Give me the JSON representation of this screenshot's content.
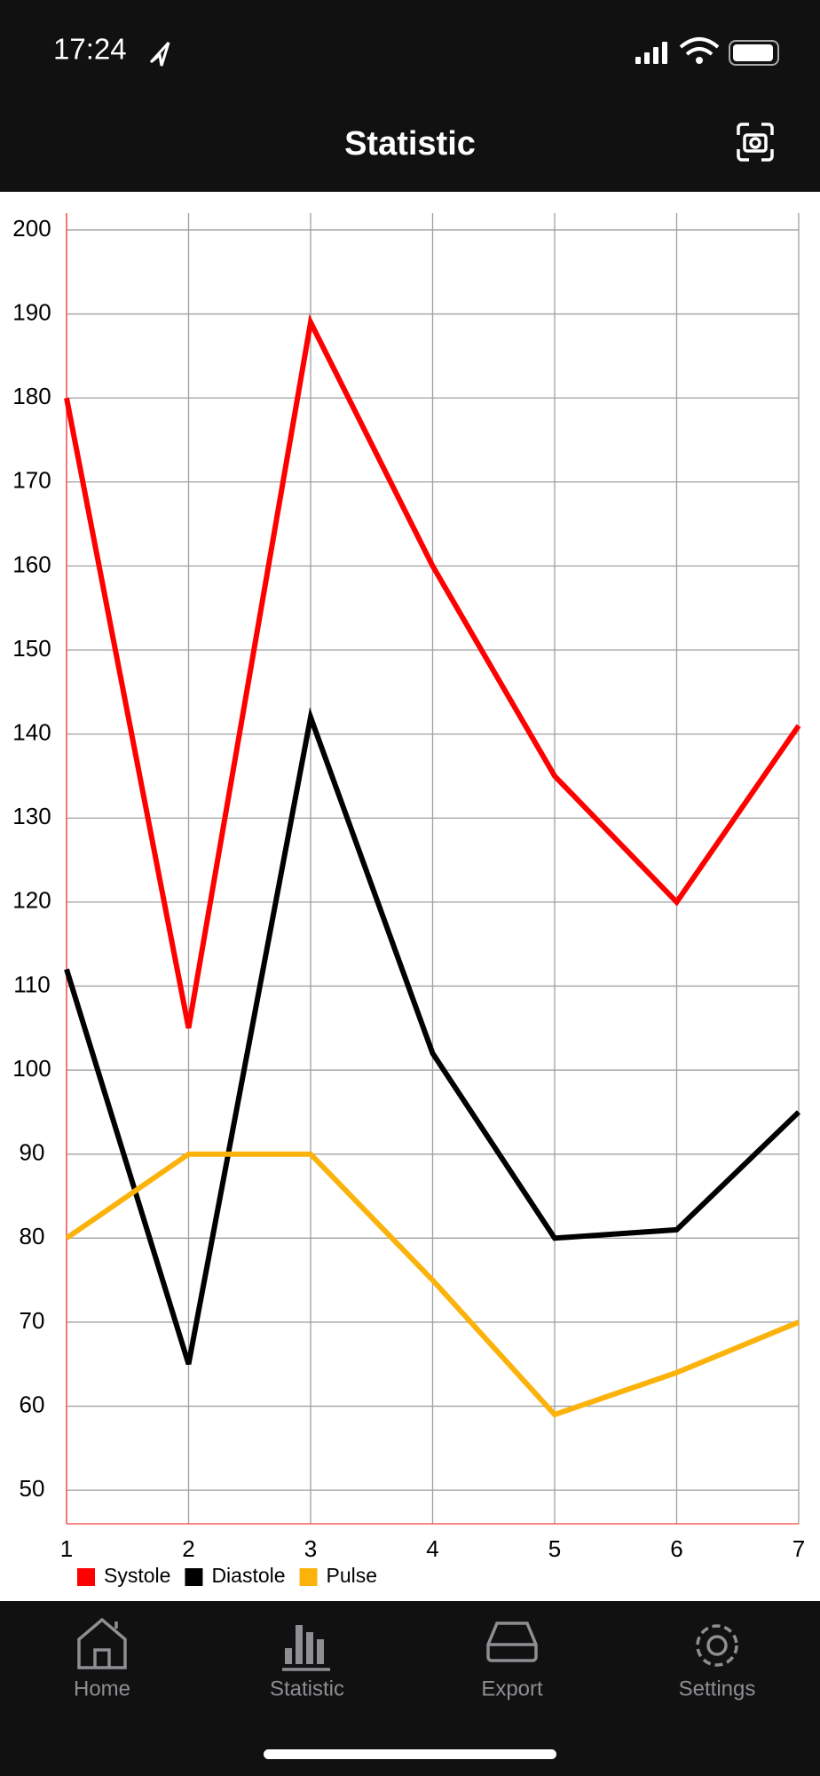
{
  "status_bar": {
    "time": "17:24"
  },
  "header": {
    "title": "Statistic"
  },
  "chart_data": {
    "type": "line",
    "x": [
      1,
      2,
      3,
      4,
      5,
      6,
      7
    ],
    "series": [
      {
        "name": "Systole",
        "color": "#ff0000",
        "values": [
          180,
          105,
          189,
          160,
          135,
          120,
          141
        ]
      },
      {
        "name": "Diastole",
        "color": "#000000",
        "values": [
          112,
          65,
          142,
          102,
          80,
          81,
          95
        ]
      },
      {
        "name": "Pulse",
        "color": "#fbb30c",
        "values": [
          80,
          90,
          90,
          75,
          59,
          64,
          70
        ]
      }
    ],
    "xlim": [
      1,
      7
    ],
    "xticks": [
      1,
      2,
      3,
      4,
      5,
      6,
      7
    ],
    "ylim": [
      46,
      202
    ],
    "yticks": [
      50,
      60,
      70,
      80,
      90,
      100,
      110,
      120,
      130,
      140,
      150,
      160,
      170,
      180,
      190,
      200
    ],
    "grid": true,
    "legend": "bottom-left"
  },
  "tab_bar": {
    "items": [
      "Home",
      "Statistic",
      "Export",
      "Settings"
    ]
  }
}
